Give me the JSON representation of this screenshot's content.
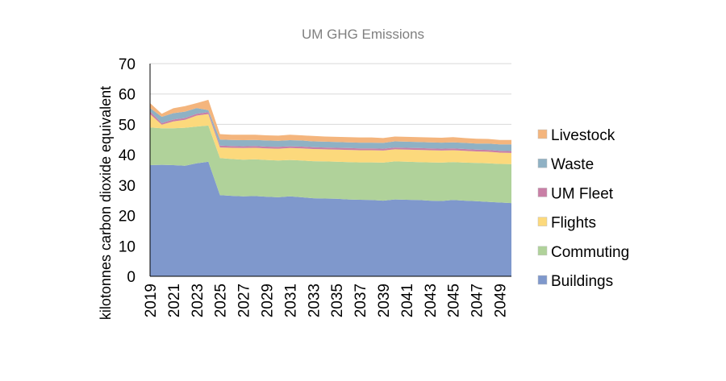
{
  "chart_data": {
    "type": "area",
    "stacked": true,
    "title": "UM GHG Emissions",
    "xlabel": "",
    "ylabel": "kilotonnes carbon dioxide equivalent",
    "ylim": [
      0,
      70
    ],
    "yticks": [
      0,
      10,
      20,
      30,
      40,
      50,
      60,
      70
    ],
    "grid": true,
    "legend_position": "right",
    "x": [
      2019,
      2020,
      2021,
      2022,
      2023,
      2024,
      2025,
      2026,
      2027,
      2028,
      2029,
      2030,
      2031,
      2032,
      2033,
      2034,
      2035,
      2036,
      2037,
      2038,
      2039,
      2040,
      2041,
      2042,
      2043,
      2044,
      2045,
      2046,
      2047,
      2048,
      2049,
      2050
    ],
    "xtick_labels": [
      "2019",
      "2021",
      "2023",
      "2025",
      "2027",
      "2029",
      "2031",
      "2033",
      "2035",
      "2037",
      "2039",
      "2041",
      "2043",
      "2045",
      "2047",
      "2049"
    ],
    "series": [
      {
        "name": "Buildings",
        "color": "#7f98cc",
        "values": [
          36.6,
          36.7,
          36.6,
          36.4,
          37.2,
          37.7,
          26.7,
          26.5,
          26.3,
          26.4,
          26.2,
          26.0,
          26.3,
          26.0,
          25.7,
          25.6,
          25.5,
          25.3,
          25.2,
          25.1,
          24.9,
          25.3,
          25.2,
          25.1,
          24.9,
          24.8,
          25.1,
          24.9,
          24.7,
          24.5,
          24.3,
          24.1
        ]
      },
      {
        "name": "Commuting",
        "color": "#b0d29a",
        "values": [
          12.4,
          12.0,
          12.1,
          12.5,
          12.1,
          11.9,
          12.2,
          12.1,
          12.1,
          12.1,
          12.1,
          12.1,
          12.0,
          12.1,
          12.2,
          12.2,
          12.2,
          12.3,
          12.3,
          12.4,
          12.5,
          12.5,
          12.5,
          12.5,
          12.6,
          12.6,
          12.5,
          12.5,
          12.6,
          12.7,
          12.7,
          12.8
        ]
      },
      {
        "name": "Flights",
        "color": "#fcd97c",
        "values": [
          4.4,
          1.2,
          2.3,
          2.6,
          3.6,
          3.8,
          3.5,
          3.7,
          3.8,
          3.8,
          3.8,
          3.9,
          3.9,
          4.0,
          4.0,
          4.0,
          4.0,
          4.0,
          4.0,
          4.0,
          4.0,
          4.0,
          4.0,
          4.0,
          4.0,
          4.0,
          3.9,
          3.9,
          3.8,
          3.8,
          3.7,
          3.7
        ]
      },
      {
        "name": "UM Fleet",
        "color": "#c97fa6",
        "values": [
          0.9,
          0.5,
          0.6,
          0.6,
          0.6,
          0.6,
          0.6,
          0.6,
          0.6,
          0.6,
          0.6,
          0.6,
          0.6,
          0.6,
          0.6,
          0.6,
          0.6,
          0.6,
          0.6,
          0.6,
          0.6,
          0.6,
          0.6,
          0.6,
          0.6,
          0.6,
          0.6,
          0.6,
          0.6,
          0.6,
          0.6,
          0.6
        ]
      },
      {
        "name": "Waste",
        "color": "#8fb1c4",
        "values": [
          1.1,
          2.1,
          2.1,
          2.1,
          1.9,
          0.7,
          2.0,
          2.0,
          2.0,
          2.0,
          2.0,
          2.0,
          2.0,
          2.0,
          1.9,
          1.9,
          1.9,
          1.9,
          1.9,
          1.9,
          1.9,
          2.0,
          2.0,
          2.0,
          2.0,
          2.0,
          2.0,
          2.0,
          2.0,
          2.1,
          2.1,
          2.2
        ]
      },
      {
        "name": "Livestock",
        "color": "#f4b57d",
        "values": [
          1.6,
          1.0,
          1.6,
          1.8,
          1.6,
          3.4,
          1.8,
          1.7,
          1.8,
          1.7,
          1.7,
          1.7,
          1.8,
          1.7,
          1.8,
          1.7,
          1.7,
          1.7,
          1.7,
          1.7,
          1.6,
          1.6,
          1.6,
          1.6,
          1.6,
          1.6,
          1.7,
          1.6,
          1.6,
          1.5,
          1.5,
          1.5
        ]
      }
    ],
    "legend_order": [
      "Livestock",
      "Waste",
      "UM Fleet",
      "Flights",
      "Commuting",
      "Buildings"
    ]
  }
}
